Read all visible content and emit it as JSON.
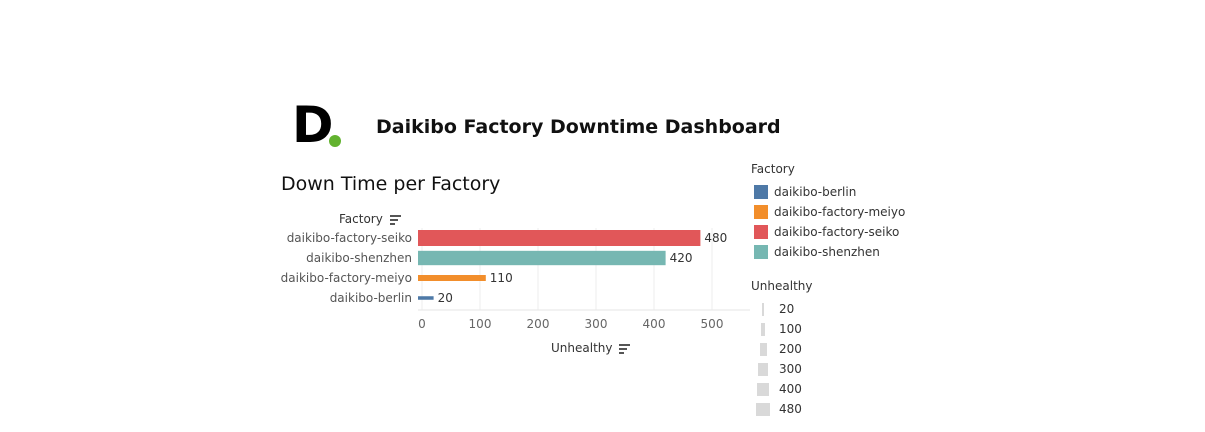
{
  "header": {
    "logo_letter": "D",
    "logo_dot_color": "#62b22f",
    "title": "Daikibo Factory Downtime Dashboard"
  },
  "chart_data": {
    "type": "bar",
    "orientation": "horizontal",
    "title": "Down Time per Factory",
    "ylabel": "Factory",
    "xlabel": "Unhealthy",
    "categories": [
      "daikibo-factory-seiko",
      "daikibo-shenzhen",
      "daikibo-factory-meiyo",
      "daikibo-berlin"
    ],
    "values": [
      480,
      420,
      110,
      20
    ],
    "colors": [
      "#e15759",
      "#76b7b2",
      "#f28e2b",
      "#4e79a7"
    ],
    "xlim": [
      0,
      550
    ],
    "xticks": [
      0,
      100,
      200,
      300,
      400,
      500
    ],
    "grid": true,
    "legends": {
      "color": {
        "title": "Factory",
        "items": [
          {
            "label": "daikibo-berlin",
            "color": "#4e79a7"
          },
          {
            "label": "daikibo-factory-meiyo",
            "color": "#f28e2b"
          },
          {
            "label": "daikibo-factory-seiko",
            "color": "#e15759"
          },
          {
            "label": "daikibo-shenzhen",
            "color": "#76b7b2"
          }
        ]
      },
      "size": {
        "title": "Unhealthy",
        "items": [
          20,
          100,
          200,
          300,
          400,
          480
        ]
      }
    }
  }
}
